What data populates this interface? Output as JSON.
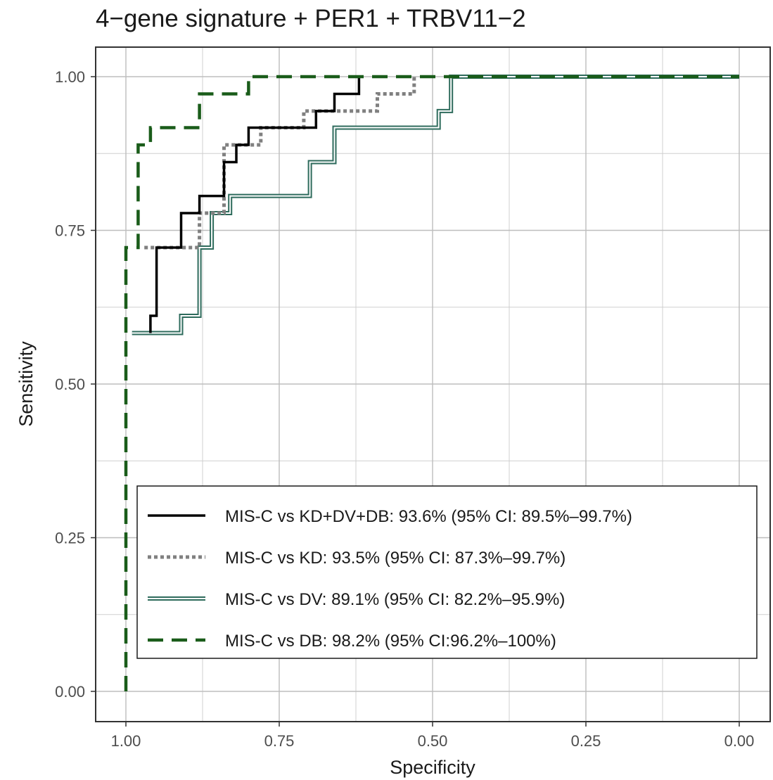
{
  "chart_data": {
    "type": "line",
    "title": "4−gene signature + PER1 + TRBV11−2",
    "xlabel": "Specificity",
    "ylabel": "Sensitivity",
    "xlim": [
      1.0,
      0.0
    ],
    "ylim": [
      0.0,
      1.0
    ],
    "x_reversed": true,
    "grid": true,
    "legend_position": "bottom-right",
    "xticks": [
      "1.00",
      "0.75",
      "0.50",
      "0.25",
      "0.00"
    ],
    "yticks": [
      "0.00",
      "0.25",
      "0.50",
      "0.75",
      "1.00"
    ],
    "series": [
      {
        "name": "MIS-C vs KD+DV+DB: 93.6% (95% CI: 89.5%–99.7%)",
        "color": "#000000",
        "line_style": "solid",
        "points": [
          [
            0.96,
            0.583
          ],
          [
            0.96,
            0.611
          ],
          [
            0.95,
            0.611
          ],
          [
            0.95,
            0.722
          ],
          [
            0.91,
            0.722
          ],
          [
            0.91,
            0.778
          ],
          [
            0.88,
            0.778
          ],
          [
            0.88,
            0.806
          ],
          [
            0.84,
            0.806
          ],
          [
            0.84,
            0.861
          ],
          [
            0.82,
            0.861
          ],
          [
            0.82,
            0.889
          ],
          [
            0.8,
            0.889
          ],
          [
            0.8,
            0.917
          ],
          [
            0.69,
            0.917
          ],
          [
            0.69,
            0.944
          ],
          [
            0.66,
            0.944
          ],
          [
            0.66,
            0.972
          ],
          [
            0.62,
            0.972
          ],
          [
            0.62,
            1.0
          ]
        ]
      },
      {
        "name": "MIS-C vs KD: 93.5% (95% CI: 87.3%–99.7%)",
        "color": "#808080",
        "line_style": "dotted",
        "points": [
          [
            0.97,
            0.722
          ],
          [
            0.88,
            0.722
          ],
          [
            0.88,
            0.778
          ],
          [
            0.84,
            0.778
          ],
          [
            0.84,
            0.889
          ],
          [
            0.78,
            0.889
          ],
          [
            0.78,
            0.917
          ],
          [
            0.71,
            0.917
          ],
          [
            0.71,
            0.944
          ],
          [
            0.59,
            0.944
          ],
          [
            0.59,
            0.972
          ],
          [
            0.53,
            0.972
          ],
          [
            0.53,
            1.0
          ]
        ]
      },
      {
        "name": "MIS-C vs DV: 89.1% (95% CI: 82.2%–95.9%)",
        "color": "#2e6b5c",
        "line_style": "double",
        "points": [
          [
            0.99,
            0.583
          ],
          [
            0.91,
            0.583
          ],
          [
            0.91,
            0.611
          ],
          [
            0.88,
            0.611
          ],
          [
            0.88,
            0.722
          ],
          [
            0.86,
            0.722
          ],
          [
            0.86,
            0.778
          ],
          [
            0.83,
            0.778
          ],
          [
            0.83,
            0.806
          ],
          [
            0.7,
            0.806
          ],
          [
            0.7,
            0.861
          ],
          [
            0.66,
            0.861
          ],
          [
            0.66,
            0.917
          ],
          [
            0.49,
            0.917
          ],
          [
            0.49,
            0.944
          ],
          [
            0.47,
            0.944
          ],
          [
            0.47,
            1.0
          ],
          [
            0.0,
            1.0
          ]
        ]
      },
      {
        "name": "MIS-C vs DB: 98.2% (95% CI:96.2%–100%)",
        "color": "#1a5c1a",
        "line_style": "dashed",
        "points": [
          [
            1.0,
            0.0
          ],
          [
            1.0,
            0.722
          ],
          [
            0.98,
            0.722
          ],
          [
            0.98,
            0.889
          ],
          [
            0.96,
            0.889
          ],
          [
            0.96,
            0.917
          ],
          [
            0.88,
            0.917
          ],
          [
            0.88,
            0.972
          ],
          [
            0.8,
            0.972
          ],
          [
            0.8,
            1.0
          ],
          [
            0.0,
            1.0
          ]
        ]
      }
    ]
  }
}
